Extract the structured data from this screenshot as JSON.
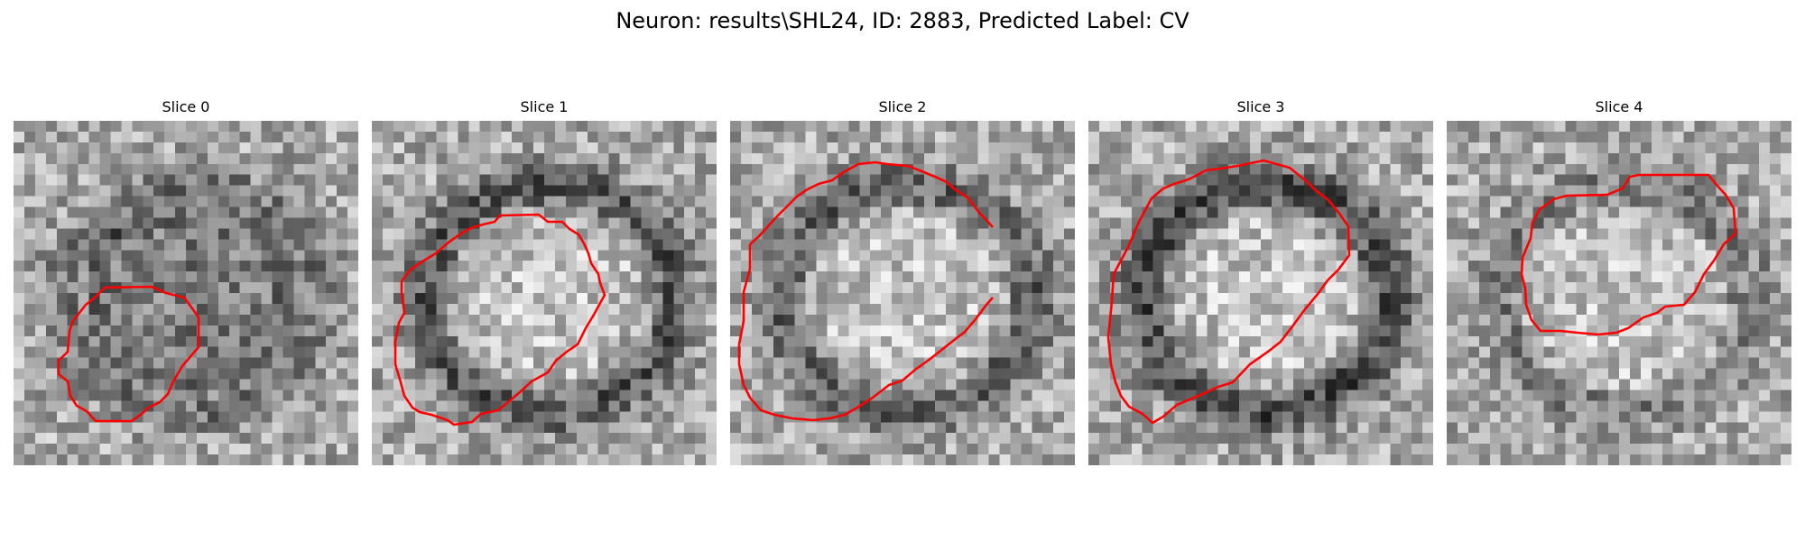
{
  "figure": {
    "title": "Neuron: results\\SHL24, ID: 2883, Predicted Label: CV"
  },
  "contour_color": "#ff0000",
  "slices": [
    {
      "label": "Slice 0",
      "seed": 11,
      "dark_ring": 0.55,
      "center_dark": true
    },
    {
      "label": "Slice 1",
      "seed": 23,
      "dark_ring": 0.85,
      "center_dark": false
    },
    {
      "label": "Slice 2",
      "seed": 37,
      "dark_ring": 0.75,
      "center_dark": false
    },
    {
      "label": "Slice 3",
      "seed": 41,
      "dark_ring": 1.0,
      "center_dark": false
    },
    {
      "label": "Slice 4",
      "seed": 53,
      "dark_ring": 0.45,
      "center_dark": false
    }
  ]
}
